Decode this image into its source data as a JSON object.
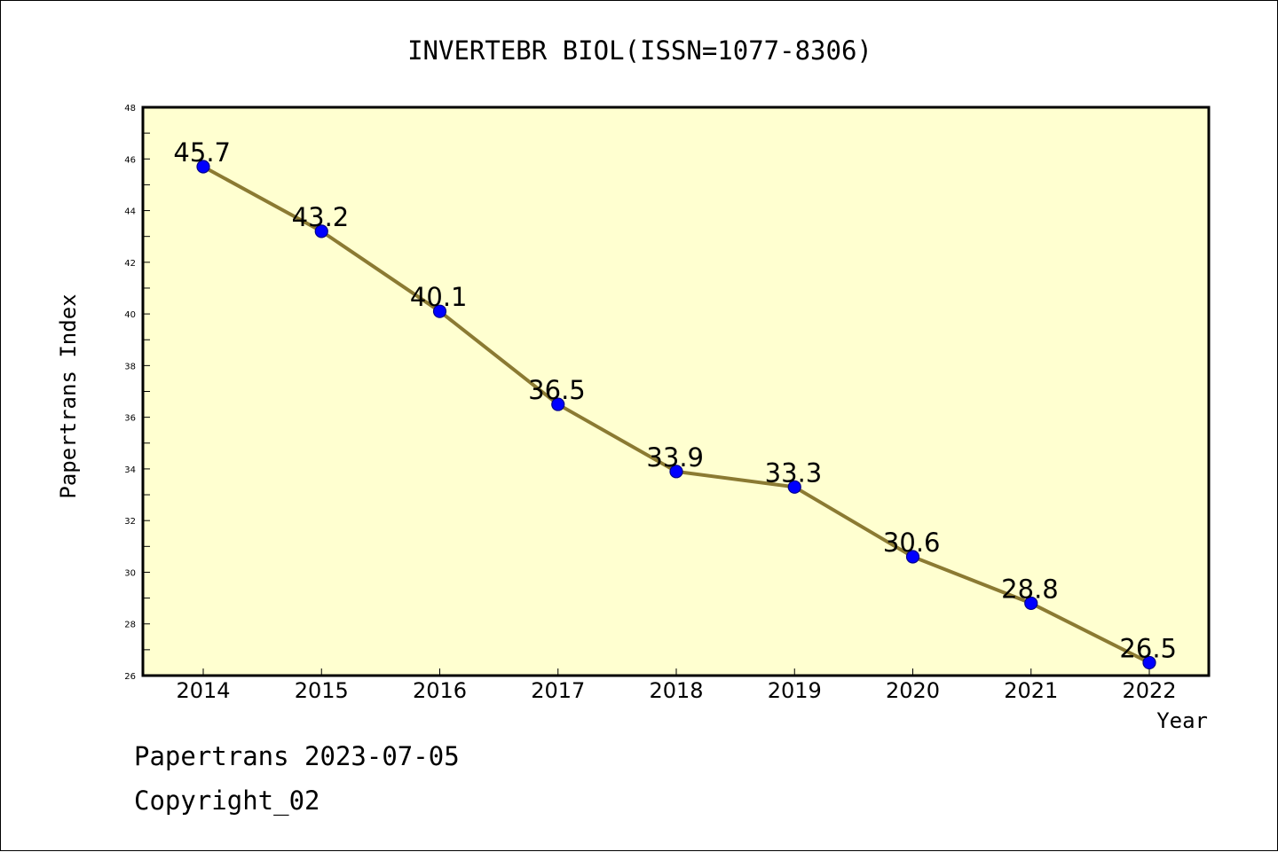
{
  "chart_data": {
    "type": "line",
    "title": "INVERTEBR BIOL(ISSN=1077-8306)",
    "xlabel": "Year",
    "ylabel": "Papertrans Index",
    "categories": [
      "2014",
      "2015",
      "2016",
      "2017",
      "2018",
      "2019",
      "2020",
      "2021",
      "2022"
    ],
    "values": [
      45.7,
      43.2,
      40.1,
      36.5,
      33.9,
      33.3,
      30.6,
      28.8,
      26.5
    ],
    "data_labels": [
      "45.7",
      "43.2",
      "40.1",
      "36.5",
      "33.9",
      "33.3",
      "30.6",
      "28.8",
      "26.5"
    ],
    "ylim": [
      26,
      48
    ],
    "yticks": [
      26,
      28,
      30,
      32,
      34,
      36,
      38,
      40,
      42,
      44,
      46,
      48
    ],
    "grid": false,
    "legend": "none",
    "colors": {
      "plot_background": "#ffffd0",
      "line": "#8b7a32",
      "marker": "#0000ff",
      "marker_edge": "#00008b",
      "axis": "#000000"
    }
  },
  "footer": {
    "line1": "Papertrans 2023-07-05",
    "line2": "Copyright_02"
  }
}
